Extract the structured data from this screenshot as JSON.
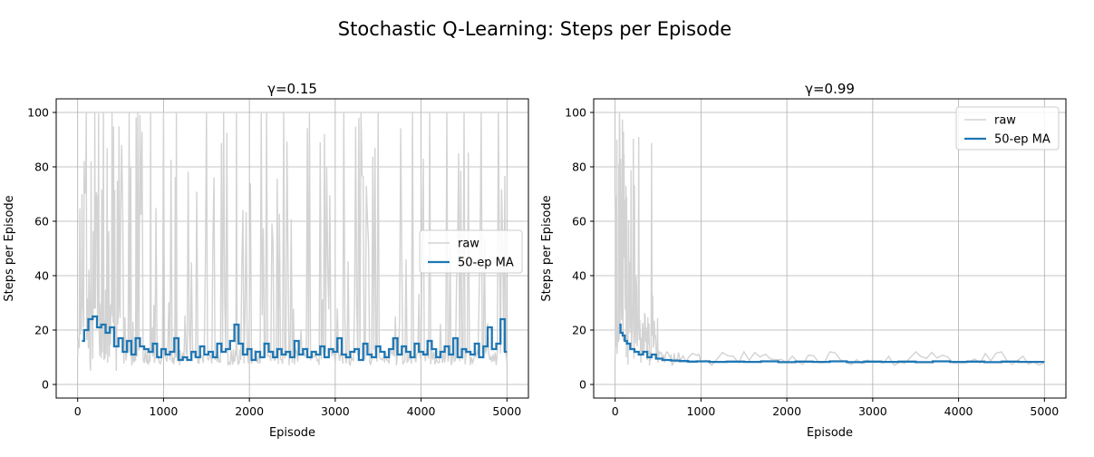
{
  "figure": {
    "suptitle": "Stochastic Q-Learning: Steps per Episode"
  },
  "colors": {
    "raw": "#d3d3d3",
    "ma": "#1f77b4",
    "grid": "#b0b0b0",
    "axes": "#000000"
  },
  "chart_data": [
    {
      "type": "line",
      "title": "γ=0.15",
      "xlabel": "Episode",
      "ylabel": "Steps per Episode",
      "xlim": [
        -250,
        5250
      ],
      "ylim": [
        -5,
        105
      ],
      "xticks": [
        0,
        1000,
        2000,
        3000,
        4000,
        5000
      ],
      "yticks": [
        0,
        20,
        40,
        60,
        80,
        100
      ],
      "grid": true,
      "legend": {
        "placement": "center-right",
        "entries": [
          "raw",
          "50-ep MA"
        ]
      },
      "series": [
        {
          "name": "raw",
          "description_points": [
            [
              0,
              10
            ],
            [
              50,
              70
            ],
            [
              100,
              100
            ],
            [
              150,
              5
            ],
            [
              200,
              100
            ],
            [
              250,
              20
            ],
            [
              300,
              100
            ],
            [
              350,
              8
            ],
            [
              400,
              100
            ],
            [
              450,
              5
            ],
            [
              500,
              60
            ],
            [
              600,
              100
            ],
            [
              650,
              9
            ],
            [
              700,
              100
            ],
            [
              800,
              8
            ],
            [
              850,
              100
            ],
            [
              900,
              9
            ],
            [
              1000,
              100
            ],
            [
              1100,
              8
            ],
            [
              1150,
              100
            ],
            [
              1200,
              9
            ],
            [
              1300,
              20
            ],
            [
              1400,
              8
            ],
            [
              1500,
              100
            ],
            [
              1600,
              9
            ],
            [
              1700,
              100
            ],
            [
              1800,
              8
            ],
            [
              1850,
              100
            ],
            [
              1900,
              9
            ],
            [
              2000,
              25
            ],
            [
              2100,
              8
            ],
            [
              2200,
              100
            ],
            [
              2300,
              9
            ],
            [
              2400,
              100
            ],
            [
              2500,
              8
            ],
            [
              2600,
              20
            ],
            [
              2700,
              100
            ],
            [
              2800,
              9
            ],
            [
              2900,
              80
            ],
            [
              3000,
              8
            ],
            [
              3100,
              100
            ],
            [
              3200,
              9
            ],
            [
              3300,
              100
            ],
            [
              3400,
              8
            ],
            [
              3500,
              100
            ],
            [
              3600,
              9
            ],
            [
              3700,
              25
            ],
            [
              3800,
              8
            ],
            [
              3900,
              100
            ],
            [
              4000,
              9
            ],
            [
              4100,
              100
            ],
            [
              4200,
              8
            ],
            [
              4300,
              100
            ],
            [
              4400,
              9
            ],
            [
              4500,
              100
            ],
            [
              4600,
              8
            ],
            [
              4700,
              100
            ],
            [
              4800,
              9
            ],
            [
              4900,
              100
            ],
            [
              5000,
              8
            ]
          ]
        },
        {
          "name": "50-ep MA",
          "x": [
            50,
            100,
            150,
            200,
            250,
            300,
            350,
            400,
            450,
            500,
            550,
            600,
            650,
            700,
            750,
            800,
            850,
            900,
            950,
            1000,
            1050,
            1100,
            1150,
            1200,
            1250,
            1300,
            1350,
            1400,
            1450,
            1500,
            1550,
            1600,
            1650,
            1700,
            1750,
            1800,
            1850,
            1900,
            1950,
            2000,
            2050,
            2100,
            2150,
            2200,
            2250,
            2300,
            2350,
            2400,
            2450,
            2500,
            2550,
            2600,
            2650,
            2700,
            2750,
            2800,
            2850,
            2900,
            2950,
            3000,
            3050,
            3100,
            3150,
            3200,
            3250,
            3300,
            3350,
            3400,
            3450,
            3500,
            3550,
            3600,
            3650,
            3700,
            3750,
            3800,
            3850,
            3900,
            3950,
            4000,
            4050,
            4100,
            4150,
            4200,
            4250,
            4300,
            4350,
            4400,
            4450,
            4500,
            4550,
            4600,
            4650,
            4700,
            4750,
            4800,
            4850,
            4900,
            4950,
            5000
          ],
          "values": [
            16,
            20,
            24,
            25,
            21,
            22,
            19,
            21,
            14,
            17,
            12,
            16,
            11,
            17,
            14,
            13,
            12,
            15,
            10,
            13,
            11,
            12,
            17,
            9,
            10,
            9,
            12,
            10,
            14,
            11,
            12,
            10,
            15,
            12,
            13,
            16,
            22,
            15,
            11,
            13,
            9,
            12,
            10,
            15,
            12,
            10,
            13,
            11,
            12,
            10,
            16,
            11,
            13,
            10,
            12,
            11,
            14,
            10,
            13,
            12,
            17,
            11,
            10,
            12,
            13,
            9,
            15,
            11,
            10,
            14,
            12,
            10,
            13,
            17,
            11,
            14,
            12,
            10,
            15,
            12,
            11,
            16,
            13,
            10,
            12,
            14,
            11,
            17,
            10,
            13,
            12,
            11,
            15,
            10,
            14,
            21,
            13,
            15,
            24,
            12
          ]
        }
      ]
    },
    {
      "type": "line",
      "title": "γ=0.99",
      "xlabel": "Episode",
      "ylabel": "Steps per Episode",
      "xlim": [
        -250,
        5250
      ],
      "ylim": [
        -5,
        105
      ],
      "xticks": [
        0,
        1000,
        2000,
        3000,
        4000,
        5000
      ],
      "yticks": [
        0,
        20,
        40,
        60,
        80,
        100
      ],
      "grid": true,
      "legend": {
        "placement": "top-right",
        "entries": [
          "raw",
          "50-ep MA"
        ]
      },
      "series": [
        {
          "name": "raw",
          "description_points": [
            [
              0,
              10
            ],
            [
              20,
              90
            ],
            [
              50,
              100
            ],
            [
              80,
              30
            ],
            [
              100,
              60
            ],
            [
              130,
              10
            ],
            [
              160,
              45
            ],
            [
              200,
              20
            ],
            [
              250,
              35
            ],
            [
              300,
              8
            ],
            [
              350,
              25
            ],
            [
              400,
              7
            ],
            [
              450,
              15
            ],
            [
              500,
              8
            ],
            [
              600,
              12
            ],
            [
              700,
              8
            ],
            [
              800,
              10
            ],
            [
              1000,
              8
            ],
            [
              1500,
              12
            ],
            [
              2000,
              8
            ],
            [
              2500,
              12
            ],
            [
              3000,
              8
            ],
            [
              3500,
              12
            ],
            [
              4000,
              8
            ],
            [
              4500,
              12
            ],
            [
              5000,
              8
            ]
          ]
        },
        {
          "name": "50-ep MA",
          "x": [
            50,
            75,
            100,
            125,
            150,
            200,
            250,
            300,
            350,
            400,
            450,
            500,
            600,
            700,
            800,
            900,
            1000,
            1200,
            1400,
            1600,
            1800,
            2000,
            2200,
            2400,
            2600,
            2800,
            3000,
            3200,
            3400,
            3600,
            3800,
            4000,
            4200,
            4400,
            4600,
            4800,
            5000
          ],
          "values": [
            22,
            19,
            18,
            16,
            15,
            13,
            12,
            11,
            12,
            10,
            11,
            9.5,
            9,
            8.8,
            8.6,
            8.4,
            8.5,
            8.3,
            8.4,
            8.3,
            8.5,
            8.2,
            8.4,
            8.3,
            8.5,
            8.2,
            8.4,
            8.3,
            8.4,
            8.2,
            8.5,
            8.3,
            8.4,
            8.2,
            8.4,
            8.3,
            8.3
          ]
        }
      ]
    }
  ]
}
